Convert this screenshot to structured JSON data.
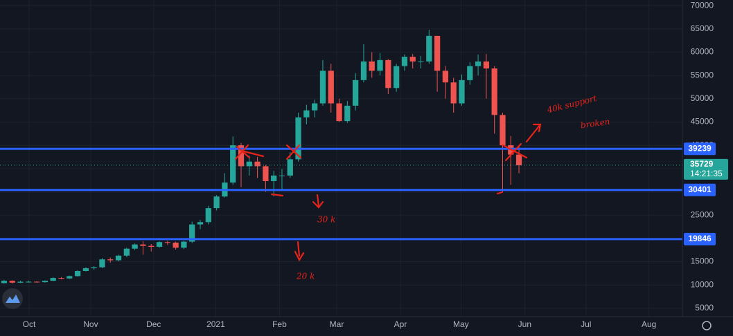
{
  "chart_data": {
    "type": "candlestick",
    "open": [
      10400,
      10900,
      10500,
      10700,
      10700,
      10600,
      10900,
      11500,
      11400,
      11900,
      13000,
      13600,
      13800,
      15500,
      15300,
      16300,
      17800,
      18700,
      18400,
      18200,
      19200,
      19100,
      18000,
      19300,
      23000,
      23500,
      26500,
      29000,
      32000,
      40000,
      35500,
      36500,
      35500,
      32300,
      33500,
      33500,
      37000,
      46000,
      47500,
      49000,
      56000,
      49000,
      45200,
      48500,
      54000,
      58000,
      56000,
      58300,
      52300,
      57000,
      59000,
      58000,
      58000,
      63500,
      56000,
      53500,
      49000,
      54000,
      57000,
      58000,
      56500,
      46500,
      40000,
      38000
    ],
    "high": [
      11100,
      11000,
      10900,
      10900,
      10800,
      11000,
      11700,
      11700,
      12000,
      13200,
      13800,
      14000,
      15800,
      15900,
      16500,
      18000,
      18900,
      19400,
      18800,
      19400,
      19500,
      19300,
      19500,
      23600,
      24000,
      27000,
      29300,
      34000,
      41900,
      40500,
      37800,
      37500,
      35800,
      34500,
      34900,
      38500,
      47000,
      48700,
      49800,
      58300,
      57500,
      50000,
      49500,
      55500,
      61700,
      60000,
      59800,
      58500,
      57500,
      59500,
      59600,
      59200,
      64800,
      63500,
      57000,
      54500,
      55200,
      57800,
      59500,
      59600,
      57000,
      47000,
      42000,
      39800
    ],
    "low": [
      10300,
      10300,
      10400,
      10500,
      10500,
      10500,
      10800,
      11200,
      11300,
      11800,
      12900,
      13300,
      13600,
      14800,
      15100,
      16000,
      17500,
      16500,
      17200,
      18000,
      18600,
      17600,
      17700,
      19000,
      22000,
      23000,
      26000,
      28800,
      31500,
      31000,
      33500,
      33000,
      30000,
      29000,
      30500,
      33000,
      36500,
      44500,
      46000,
      48500,
      47000,
      45000,
      44800,
      47500,
      53500,
      54500,
      55000,
      51000,
      51500,
      56000,
      56500,
      56500,
      57500,
      51500,
      50000,
      47000,
      48500,
      53000,
      55000,
      50000,
      42500,
      30000,
      31500,
      34000
    ],
    "close": [
      10900,
      10500,
      10700,
      10700,
      10600,
      10900,
      11500,
      11400,
      11900,
      13000,
      13600,
      13800,
      15500,
      15300,
      16300,
      17800,
      18700,
      18400,
      18200,
      19200,
      19100,
      18000,
      19300,
      23000,
      23500,
      26500,
      29000,
      32000,
      40000,
      35500,
      36500,
      35500,
      32300,
      33500,
      33500,
      37000,
      46000,
      47500,
      49000,
      56000,
      49000,
      45200,
      48500,
      54000,
      58000,
      56000,
      58300,
      52300,
      57000,
      59000,
      58000,
      58000,
      63500,
      56000,
      53500,
      49000,
      54000,
      57000,
      58000,
      56500,
      46500,
      40000,
      38000,
      35700
    ],
    "up_color": "#26a69a",
    "down_color": "#ef5350",
    "xlim": [
      0,
      83.5
    ],
    "xticks": [
      {
        "value": 3.56,
        "label": "Oct"
      },
      {
        "value": 11.1,
        "label": "Nov"
      },
      {
        "value": 18.8,
        "label": "Dec"
      },
      {
        "value": 26.4,
        "label": "2021"
      },
      {
        "value": 34.2,
        "label": "Feb"
      },
      {
        "value": 41.2,
        "label": "Mar"
      },
      {
        "value": 49.0,
        "label": "Apr"
      },
      {
        "value": 56.4,
        "label": "May"
      },
      {
        "value": 64.2,
        "label": "Jun"
      },
      {
        "value": 71.7,
        "label": "Jul"
      },
      {
        "value": 79.4,
        "label": "Aug"
      }
    ],
    "ylim": [
      3200,
      71200
    ],
    "yticks": [
      5000,
      10000,
      15000,
      20000,
      25000,
      30000,
      35000,
      40000,
      45000,
      50000,
      55000,
      60000,
      65000,
      70000
    ],
    "grid": true,
    "levels": [
      39239,
      30401,
      19846
    ],
    "level_color": "#2962ff",
    "last_price": 35729,
    "countdown": "14:21:35",
    "annotations": [
      "40k support",
      "broken",
      "30 k",
      "20 k"
    ]
  }
}
